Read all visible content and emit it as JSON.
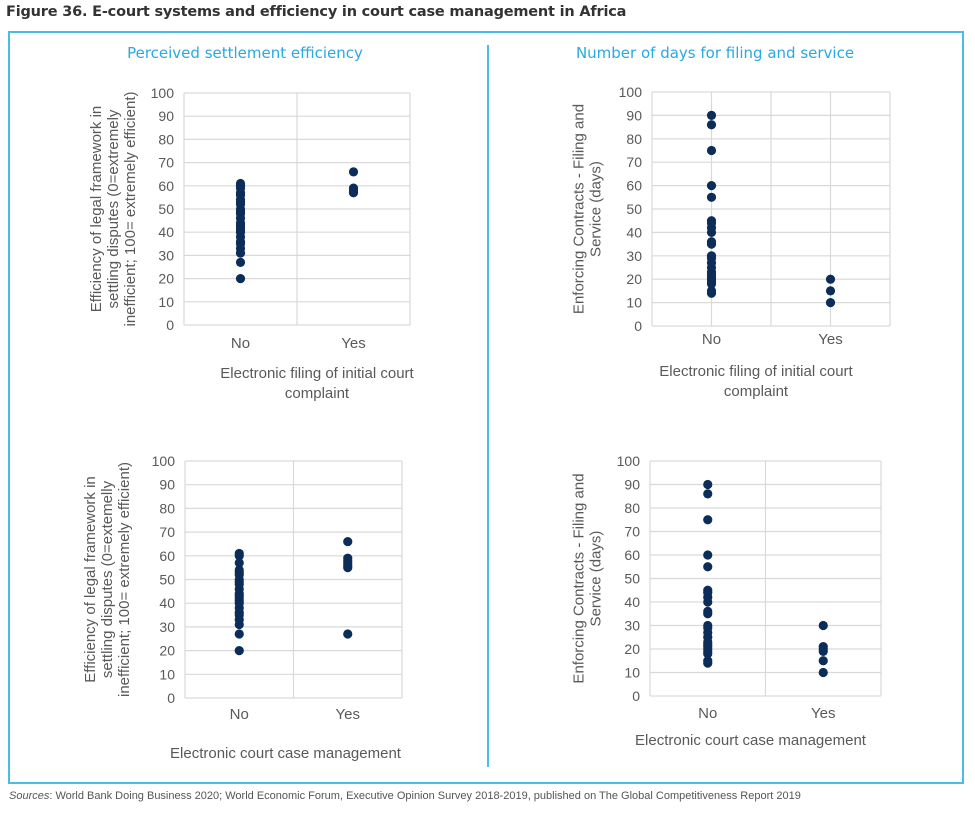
{
  "figure_title": "Figure 36. E-court systems and efficiency in court case management in Africa",
  "panels": {
    "left_title": "Perceived settlement efficiency",
    "right_title": "Number of days for filing and service"
  },
  "sources": {
    "label": "Sources",
    "text": ": World Bank Doing Business 2020; World Economic Forum, Executive Opinion Survey 2018-2019, published on The Global Competitiveness Report 2019"
  },
  "colors": {
    "dot": "#0c2d57",
    "frame": "#4bbde4",
    "panel_title": "#29a9e0",
    "grid": "#d9d9d9",
    "text": "#595959"
  },
  "chart_data": [
    {
      "id": "top-left",
      "type": "scatter",
      "title": "",
      "categories": [
        "No",
        "Yes"
      ],
      "xlabel": [
        "Electronic filing of initial court",
        "complaint"
      ],
      "ylabel": [
        "Efficiency of legal framework in",
        "settling disputes (0=extremely",
        "inefficient; 100= extremely efficient)"
      ],
      "ylim": [
        0,
        100
      ],
      "yticks": [
        0,
        10,
        20,
        30,
        40,
        50,
        60,
        70,
        80,
        90,
        100
      ],
      "grid": true,
      "series": [
        {
          "name": "No",
          "values": [
            20,
            27,
            31,
            33,
            35,
            36,
            38,
            40,
            41,
            42,
            43,
            44,
            46,
            48,
            49,
            50,
            52,
            53,
            54,
            56,
            57,
            59,
            60,
            61
          ]
        },
        {
          "name": "Yes",
          "values": [
            57,
            58,
            59,
            66
          ]
        }
      ]
    },
    {
      "id": "top-right",
      "type": "scatter",
      "title": "",
      "categories": [
        "No",
        "Yes"
      ],
      "xlabel": [
        "Electronic filing of initial court",
        "complaint"
      ],
      "ylabel": [
        "Enforcing Contracts - Filing and",
        "Service (days)"
      ],
      "ylim": [
        0,
        100
      ],
      "yticks": [
        0,
        10,
        20,
        30,
        40,
        50,
        60,
        70,
        80,
        90,
        100
      ],
      "grid": true,
      "series": [
        {
          "name": "No",
          "values": [
            14,
            15,
            18,
            19,
            20,
            21,
            22,
            23,
            25,
            27,
            29,
            30,
            35,
            36,
            40,
            42,
            44,
            45,
            55,
            60,
            75,
            86,
            90
          ]
        },
        {
          "name": "Yes",
          "values": [
            10,
            15,
            20
          ]
        }
      ]
    },
    {
      "id": "bottom-left",
      "type": "scatter",
      "title": "",
      "categories": [
        "No",
        "Yes"
      ],
      "xlabel": [
        "Electronic court case management"
      ],
      "ylabel": [
        "Efficiency of legal framework in",
        "settling disputes (0=extemelly",
        "inefficient; 100= extremely efficient)"
      ],
      "ylim": [
        0,
        100
      ],
      "yticks": [
        0,
        10,
        20,
        30,
        40,
        50,
        60,
        70,
        80,
        90,
        100
      ],
      "grid": true,
      "series": [
        {
          "name": "No",
          "values": [
            20,
            27,
            31,
            33,
            35,
            36,
            38,
            40,
            41,
            42,
            43,
            44,
            46,
            48,
            49,
            50,
            52,
            53,
            54,
            57,
            60,
            61
          ]
        },
        {
          "name": "Yes",
          "values": [
            27,
            55,
            56,
            57,
            58,
            59,
            66
          ]
        }
      ]
    },
    {
      "id": "bottom-right",
      "type": "scatter",
      "title": "",
      "categories": [
        "No",
        "Yes"
      ],
      "xlabel": [
        "Electronic court case management"
      ],
      "ylabel": [
        "Enforcing Contracts - Filing and",
        "Service (days)"
      ],
      "ylim": [
        0,
        100
      ],
      "yticks": [
        0,
        10,
        20,
        30,
        40,
        50,
        60,
        70,
        80,
        90,
        100
      ],
      "grid": true,
      "series": [
        {
          "name": "No",
          "values": [
            14,
            15,
            18,
            19,
            20,
            21,
            22,
            23,
            25,
            27,
            29,
            30,
            35,
            36,
            40,
            42,
            44,
            45,
            55,
            60,
            75,
            86,
            90
          ]
        },
        {
          "name": "Yes",
          "values": [
            10,
            15,
            19,
            20,
            21,
            30
          ]
        }
      ]
    }
  ]
}
